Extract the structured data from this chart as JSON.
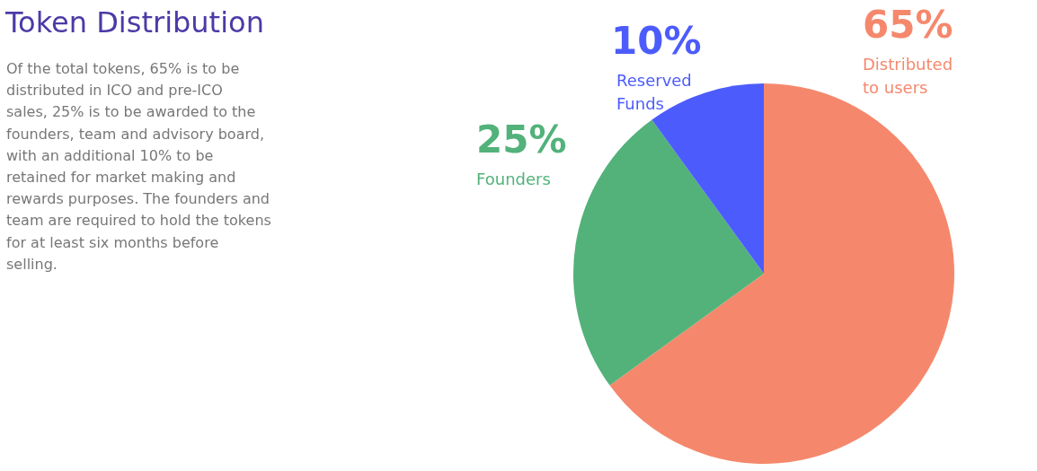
{
  "chart_data": {
    "type": "pie",
    "title": "Token Distribution",
    "annotations": [
      "Of the total tokens, 65% is to be distributed in ICO and pre-ICO sales, 25% is to be awarded to the founders, team and advisory board, with an additional 10% to be retained for market making and rewards purposes. The founders and team are required to hold the tokens for at least six months before selling."
    ],
    "categories": [
      "Distributed to users",
      "Founders",
      "Reserved Funds"
    ],
    "values": [
      65,
      25,
      10
    ],
    "colors": [
      "#f5886c",
      "#52b27a",
      "#4c5cfc"
    ],
    "value_labels": [
      "65%",
      "25%",
      "10%"
    ]
  }
}
